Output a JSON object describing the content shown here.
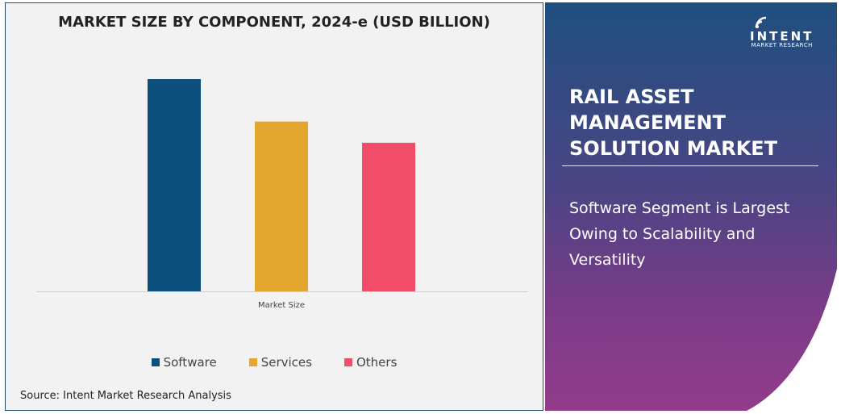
{
  "chart_data": {
    "type": "bar",
    "title": "MARKET SIZE BY COMPONENT, 2024-e (USD BILLION)",
    "categories": [
      "Market Size"
    ],
    "xlabel": "Market Size",
    "ylabel": "",
    "ylim": [
      0,
      1.0
    ],
    "grid": false,
    "legend_position": "bottom",
    "series": [
      {
        "name": "Software",
        "values": [
          1.0
        ],
        "color": "#0d4f7c"
      },
      {
        "name": "Services",
        "values": [
          0.8
        ],
        "color": "#e3a72f"
      },
      {
        "name": "Others",
        "values": [
          0.7
        ],
        "color": "#f04e68"
      }
    ]
  },
  "source": "Source: Intent Market Research Analysis",
  "panel": {
    "logo_main": "INTENT",
    "logo_sub": "MARKET RESEARCH",
    "title_lines": [
      "RAIL ASSET",
      "MANAGEMENT",
      "SOLUTION MARKET"
    ],
    "subtitle": "Software Segment is Largest Owing to Scalability and Versatility"
  }
}
